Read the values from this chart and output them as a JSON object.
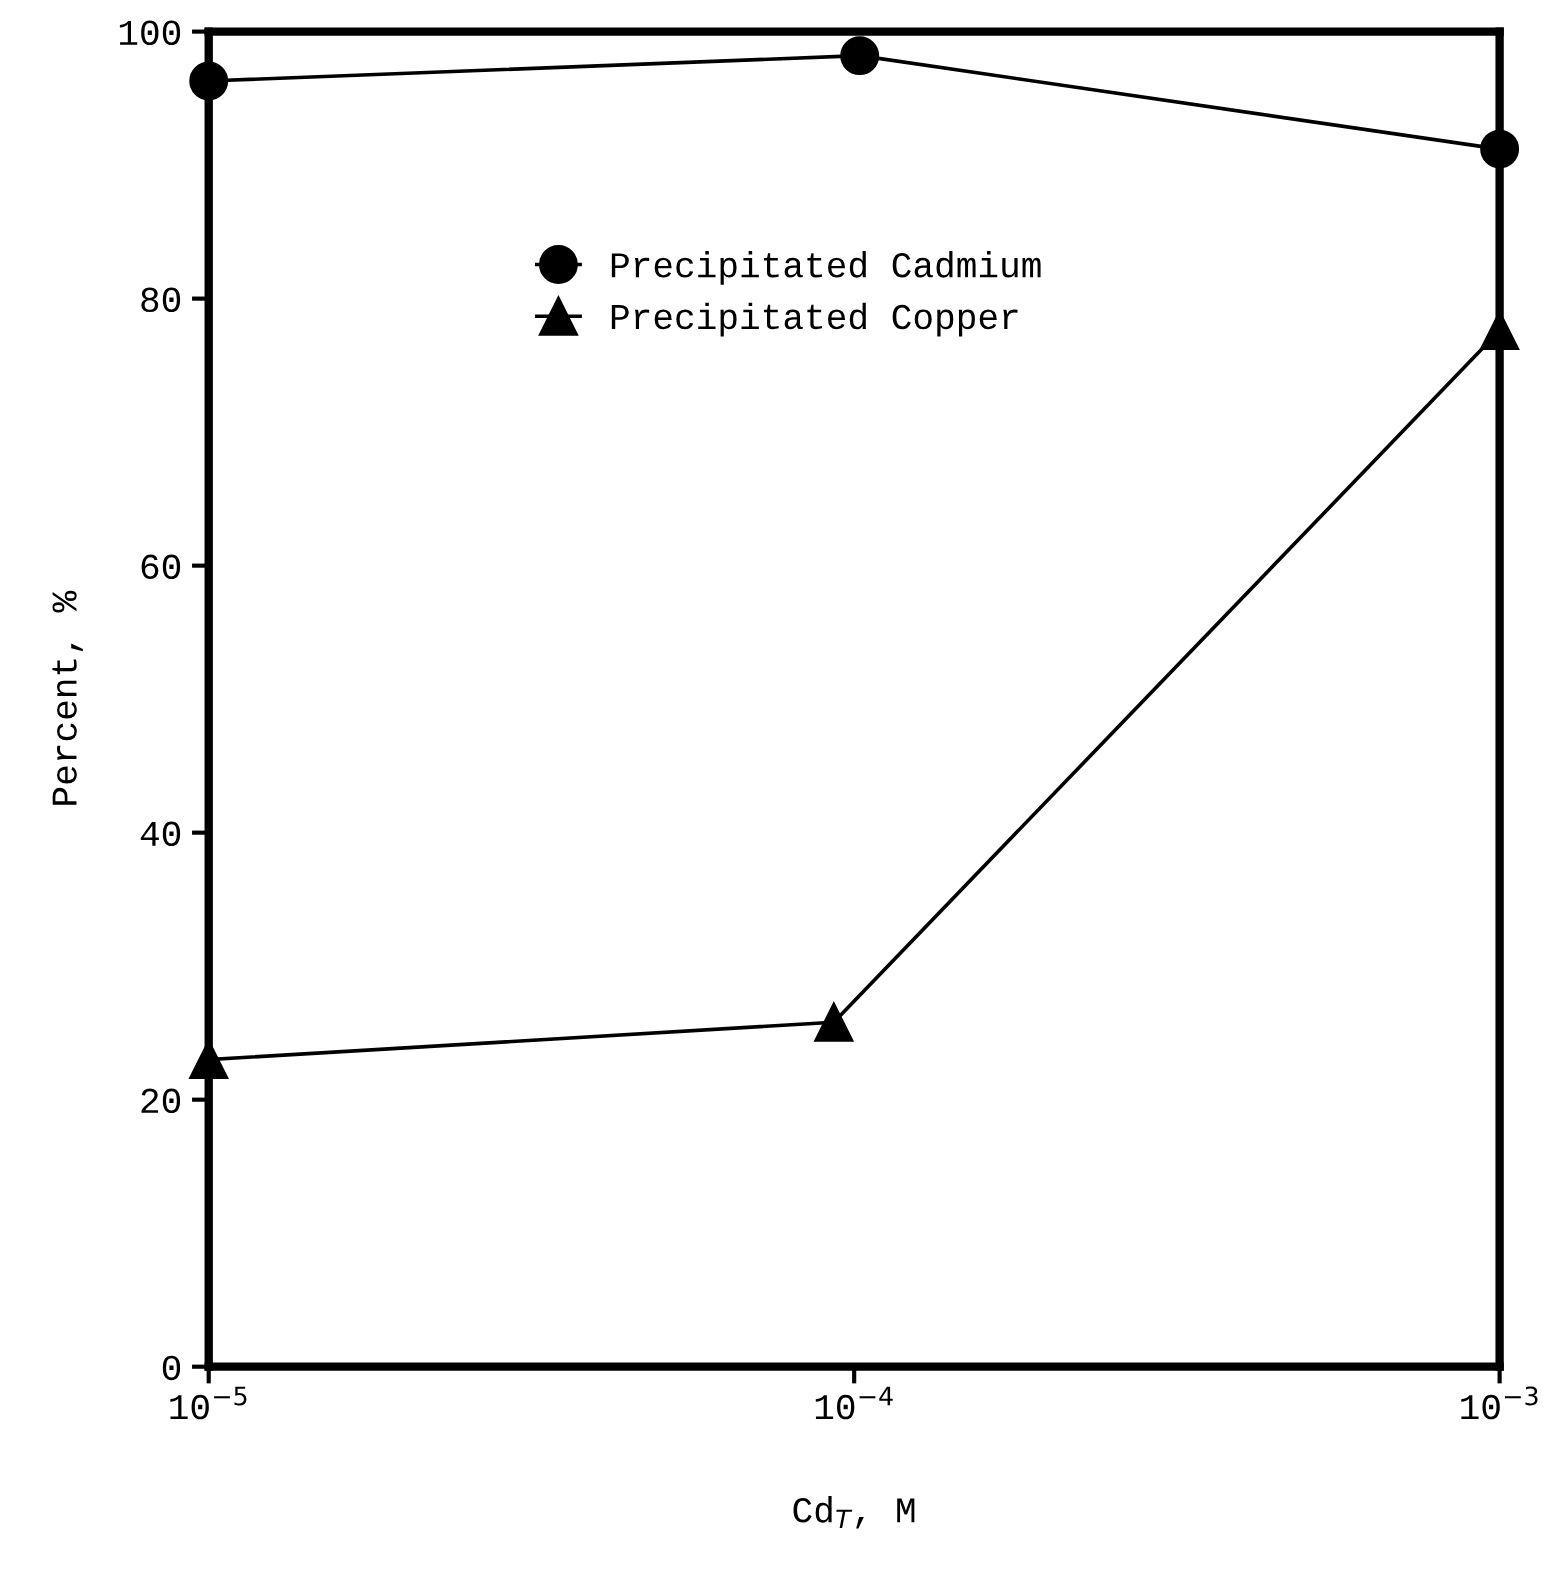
{
  "chart_data": {
    "type": "line",
    "xlabel": "Cd$_{T}$, M",
    "ylabel": "Percent, %",
    "log": "x",
    "xlim": [
      1e-05,
      0.001
    ],
    "xticks": [
      {
        "value": 1e-05,
        "label": "10$^{−5}$"
      },
      {
        "value": 0.0001,
        "label": "10$^{−4}$"
      },
      {
        "value": 0.001,
        "label": "10$^{−3}$"
      }
    ],
    "ylim": [
      0,
      100
    ],
    "yticks": [
      0,
      20,
      40,
      60,
      80,
      100
    ],
    "grid": false,
    "legend": "top",
    "series": [
      {
        "name": "Precipitated Cadmium",
        "color": "#000000",
        "marker": "circle",
        "x": [
          1e-05,
          0.000102,
          0.001
        ],
        "values": [
          96.3,
          98.2,
          91.2
        ]
      },
      {
        "name": "Precipitated Copper",
        "color": "#000000",
        "marker": "triangle",
        "x": [
          1e-05,
          9.3e-05,
          0.001
        ],
        "values": [
          23,
          25.8,
          77.6
        ]
      }
    ]
  }
}
